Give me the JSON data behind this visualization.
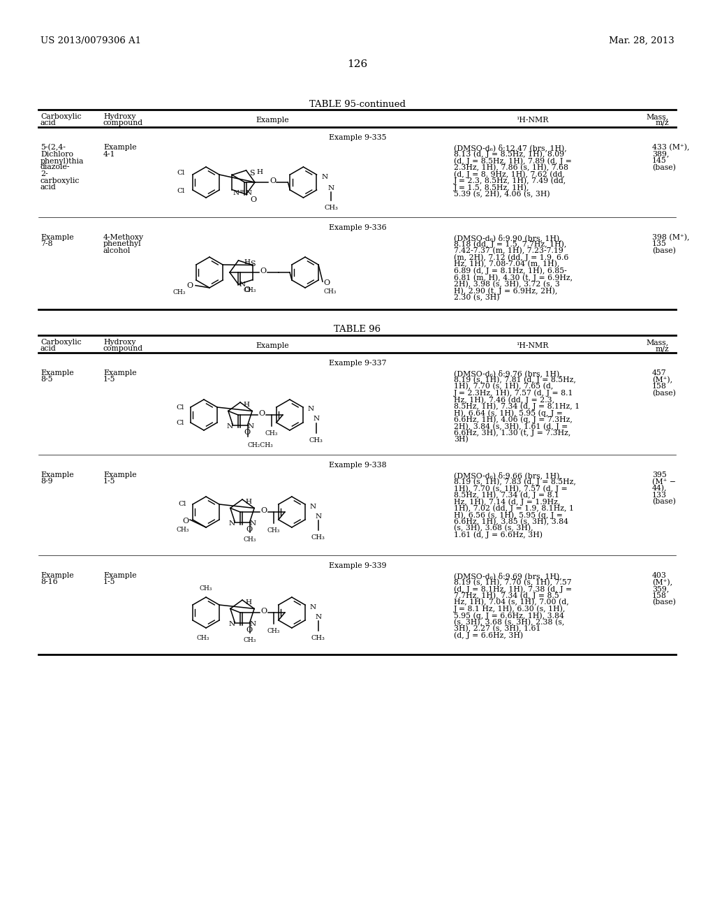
{
  "background_color": "#ffffff",
  "header_left": "US 2013/0079306 A1",
  "header_right": "Mar. 28, 2013",
  "page_number": "126",
  "table1_title": "TABLE 95-continued",
  "table2_title": "TABLE 96",
  "t1_row1": {
    "example_label": "Example 9-335",
    "carboxylic_acid": "5-(2,4-\nDichloro\nphenyl)thia\ndiazole-\n2-\ncarboxylic\nacid",
    "hydroxy_compound": "Example\n4-1",
    "nmr": "(DMSO-d₆) δ:12.47 (brs, 1H),\n8.13 (d, J = 8.5Hz, 1H), 8.09\n(d, J = 8.5Hz, 1H), 7.89 (d, J =\n2.3Hz, 1H), 7.86 (s, 1H), 7.68\n(d, J = 8. 9Hz, 1H), 7.62 (dd,\nJ = 2.3, 8.5Hz, 1H), 7.49 (dd,\nJ = 1.5, 8.5Hz, 1H),\n5.39 (s, 2H), 4.06 (s, 3H)",
    "mass": "433 (M⁺),\n389,\n145\n(base)"
  },
  "t1_row2": {
    "example_label": "Example 9-336",
    "carboxylic_acid": "Example\n7-8",
    "hydroxy_compound": "4-Methoxy\nphenethyl\nalcohol",
    "nmr": "(DMSO-d₆) δ:9.90 (brs, 1H),\n8.18 (dd, J = 1.5, 7.7Hz, 1H),\n7.42-7.37 (m, 1H), 7.23-7.19\n(m, 2H), 7.12 (dd, J = 1.9, 6.6\nHz, 1H), 7.08-7.04 (m, 1H),\n6.89 (d, J = 8.1Hz, 1H), 6.85-\n6.81 (m, H), 4.30 (t, J = 6.9Hz,\n2H), 3.98 (s, 3H), 3.72 (s, 3\nH), 2.90 (t, J = 6.9Hz, 2H),\n2.30 (s, 3H)",
    "mass": "398 (M⁺),\n135\n(base)"
  },
  "t2_row1": {
    "example_label": "Example 9-337",
    "carboxylic_acid": "Example\n8-5",
    "hydroxy_compound": "Example\n1-5",
    "nmr": "(DMSO-d₆) δ:9.76 (brs, 1H),\n8.19 (s, 1H), 7.81 (d, J = 8.5Hz,\n1H), 7.70 (s, 1H), 7.65 (d,\nJ = 2.3Hz, 1H), 7.57 (d, J = 8.1\nHz, 1H), 7.46 (dd, J = 2.3,\n8.5Hz, 1H), 7.34 (d, J = 8.1Hz, 1\nH), 6.64 (s, 1H), 5.95 (q, J =\n6.6Hz, 1H), 4.06 (q, J = 7.3Hz,\n2H), 3.84 (s, 3H), 1.61 (d, J =\n6.6Hz, 3H), 1.30 (t, J = 7.3Hz,\n3H)",
    "mass": "457\n(M⁺),\n158\n(base)"
  },
  "t2_row2": {
    "example_label": "Example 9-338",
    "carboxylic_acid": "Example\n8-9",
    "hydroxy_compound": "Example\n1-5",
    "nmr": "(DMSO-d₆) δ:9.66 (brs, 1H),\n8.19 (s, 1H), 7.83 (d, J = 8.5Hz,\n1H), 7.70 (s, 1H), 7.57 (d, J =\n8.5Hz, 1H), 7.34 (d, J = 8.1\nHz, 1H), 7.14 (d, J = 1.9Hz,\n1H), 7.02 (dd, J = 1.9, 8.1Hz, 1\nH), 6.56 (s, 1H), 5.95 (q, J =\n6.6Hz, 1H), 3.85 (s, 3H), 3.84\n(s, 3H), 3.68 (s, 3H),\n1.61 (d, J = 6.6Hz, 3H)",
    "mass": "395\n(M⁺ −\n44),\n133\n(base)"
  },
  "t2_row3": {
    "example_label": "Example 9-339",
    "carboxylic_acid": "Example\n8-16",
    "hydroxy_compound": "Example\n1-5",
    "nmr": "(DMSO-d₆) δ:9.69 (brs, 1H),\n8.19 (s, 1H), 7.70 (s, 1H), 7.57\n(d, J = 8.1Hz, 1H), 7.38 (d, J =\n7.7Hz, 1H), 7.34 (d, J = 8.5\nHz, 1H), 7.04 (s, 1H), 7.00 (d,\nJ = 8.1 Hz, 1H), 6.30 (s, 1H),\n5.95 (q, J = 6.6Hz, 1H), 3.84\n(s, 3H), 3.68 (s, 3H), 2.38 (s,\n3H), 2.27 (s, 3H), 1.61\n(d, J = 6.6Hz, 3H)",
    "mass": "403\n(M⁺),\n359,\n158\n(base)"
  }
}
